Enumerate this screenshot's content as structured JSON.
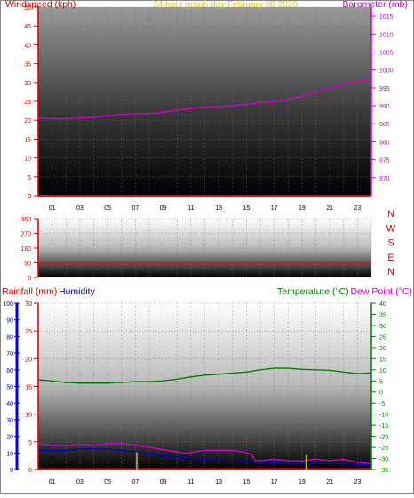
{
  "chart_data": [
    {
      "type": "line",
      "title": "24 hour graph day   February 08 2020",
      "left_axis_title": "Windspeed (kph)",
      "right_axis_title": "Barometer (mb)",
      "left_ylim": [
        0,
        50
      ],
      "left_ticks": [
        "0",
        "5",
        "10",
        "15",
        "20",
        "25",
        "30",
        "35",
        "40",
        "45",
        "50"
      ],
      "right_ylim": [
        965,
        1017.5
      ],
      "right_ticks": [
        "970",
        "975",
        "980",
        "985",
        "990",
        "995",
        "1000",
        "1005",
        "1010",
        "1015"
      ],
      "x_ticks": [
        "01",
        "03",
        "05",
        "07",
        "09",
        "11",
        "13",
        "15",
        "17",
        "19",
        "21",
        "23"
      ],
      "grid": true,
      "series": [
        {
          "color": "#d000d0",
          "axis": "right",
          "x": [
            0,
            1,
            2,
            3,
            4,
            5,
            6,
            7,
            8,
            9,
            10,
            11,
            12,
            13,
            14,
            15,
            16,
            17,
            18,
            19,
            20,
            21,
            22,
            23,
            24
          ],
          "values": [
            986.6,
            986.4,
            986.4,
            986.6,
            986.8,
            987.2,
            987.6,
            987.8,
            987.8,
            988.2,
            988.8,
            989.2,
            989.6,
            989.8,
            990.0,
            990.4,
            990.8,
            991.2,
            991.8,
            992.6,
            993.8,
            995.0,
            996.0,
            996.8,
            997.3
          ]
        },
        {
          "color": "#ff0000",
          "axis": "left",
          "x": [
            0,
            24
          ],
          "values": [
            0,
            0
          ]
        }
      ]
    },
    {
      "type": "line",
      "left_ticks": [
        "0",
        "90",
        "180",
        "270",
        "360"
      ],
      "left_ylim": [
        0,
        360
      ],
      "compass_labels": [
        "N",
        "W",
        "S",
        "E",
        "N"
      ],
      "grid": true,
      "series": [
        {
          "color": "#ff0000",
          "x": [
            0,
            24
          ],
          "values": [
            88,
            88
          ]
        }
      ]
    },
    {
      "type": "line",
      "rain_title": "Rainfall (mm)",
      "humidity_title": "Humidity",
      "temp_title": "Temperature (°C)",
      "dew_title": "Dew Point (°C)",
      "humidity_ticks": [
        "0",
        "10",
        "20",
        "30",
        "40",
        "50",
        "60",
        "70",
        "80",
        "90",
        "100"
      ],
      "humidity_ylim": [
        0,
        100
      ],
      "rain_ticks": [
        "0",
        "5",
        "10",
        "15",
        "20",
        "25",
        "30"
      ],
      "rain_ylim": [
        0,
        30
      ],
      "temp_ticks": [
        "-35",
        "-30",
        "-25",
        "-20",
        "-15",
        "-10",
        "-5",
        "0",
        "5",
        "10",
        "15",
        "20",
        "25",
        "30",
        "35",
        "40"
      ],
      "temp_ylim": [
        -35,
        40
      ],
      "x_ticks": [
        "01",
        "03",
        "05",
        "07",
        "09",
        "11",
        "13",
        "15",
        "17",
        "19",
        "21",
        "23"
      ],
      "grid": true,
      "series": [
        {
          "color": "#008000",
          "axis": "temp",
          "x": [
            0,
            1,
            2,
            3,
            4,
            5,
            6,
            7,
            8,
            9,
            10,
            11,
            12,
            13,
            14,
            15,
            16,
            17,
            18,
            19,
            20,
            21,
            22,
            23,
            24
          ],
          "values": [
            5.5,
            5.0,
            4.3,
            4.0,
            4.0,
            4.0,
            4.3,
            4.7,
            4.7,
            5.0,
            5.8,
            6.8,
            7.6,
            8.0,
            8.5,
            9.0,
            10.0,
            10.7,
            10.7,
            10.2,
            10.0,
            9.8,
            9.0,
            8.3,
            8.6
          ]
        },
        {
          "color": "#d000d0",
          "axis": "temp",
          "x": [
            0,
            1,
            2,
            3,
            4,
            5,
            6,
            7,
            8,
            8.6,
            9.3,
            10,
            10.6,
            11.3,
            12,
            13,
            14,
            14.8,
            15.4,
            15.6,
            16,
            17,
            18,
            19,
            20,
            21,
            22,
            23,
            24
          ],
          "values": [
            -23.3,
            -24,
            -24.3,
            -23.6,
            -24,
            -23.3,
            -23.3,
            -24,
            -25,
            -25.6,
            -26.3,
            -27,
            -27.7,
            -27,
            -26.3,
            -26.3,
            -26.3,
            -27,
            -28.3,
            -31,
            -31,
            -30.3,
            -31,
            -31,
            -30.3,
            -31,
            -30.3,
            -31.7,
            -32.4
          ]
        },
        {
          "color": "#0000cc",
          "axis": "temp",
          "x": [
            0,
            1,
            2,
            3,
            4,
            5,
            6,
            7,
            8,
            9,
            10,
            11,
            12,
            13,
            14,
            15,
            16,
            17,
            18,
            19,
            20,
            21,
            22,
            23,
            24
          ],
          "values": [
            -26.3,
            -26.5,
            -26.3,
            -25.8,
            -25.8,
            -25.8,
            -26.3,
            -27.0,
            -27.8,
            -28.7,
            -29.4,
            -30.0,
            -30.4,
            -30.7,
            -30.9,
            -31.1,
            -31.7,
            -32.0,
            -32.4,
            -32.2,
            -32.2,
            -32.4,
            -32.4,
            -32.6,
            -32.8
          ]
        },
        {
          "color": "#ff0000",
          "axis": "rain",
          "x": [
            0,
            24
          ],
          "values": [
            0.1,
            0.1
          ]
        },
        {
          "color": "#c8b400",
          "axis": "rain",
          "style": "bars",
          "x": [
            7.1,
            19.3
          ],
          "values": [
            1.7,
            1.2
          ]
        }
      ]
    }
  ]
}
